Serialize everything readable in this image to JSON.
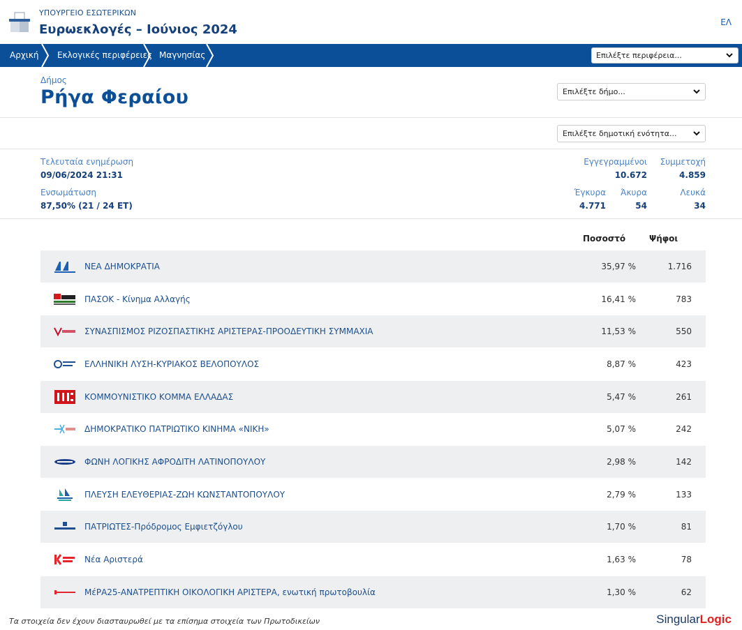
{
  "header": {
    "ministry": "ΥΠΟΥΡΓΕΙΟ ΕΣΩΤΕΡΙΚΩΝ",
    "title": "Ευρωεκλογές – Ιούνιος 2024",
    "lang": "ΕΛ"
  },
  "nav": {
    "crumbs": [
      "Αρχική",
      "Εκλογικές περιφέρειες",
      "Μαγνησίας"
    ],
    "region_select": "Επιλέξτε περιφέρεια..."
  },
  "municipality": {
    "label": "Δήμος",
    "name": "Ρήγα Φεραίου",
    "select": "Επιλέξτε δήμο...",
    "unit_select": "Επιλέξτε δημοτική ενότητα..."
  },
  "stats": {
    "last_update_label": "Τελευταία ενημέρωση",
    "last_update": "09/06/2024 21:31",
    "integration_label": "Ενσωμάτωση",
    "integration": "87,50% (21 / 24 ΕΤ)",
    "registered_label": "Εγγεγραμμένοι",
    "registered": "10.672",
    "turnout_label": "Συμμετοχή",
    "turnout": "4.859",
    "valid_label": "Έγκυρα",
    "valid": "4.771",
    "invalid_label": "Άκυρα",
    "invalid": "54",
    "blank_label": "Λευκά",
    "blank": "34"
  },
  "results": {
    "pct_header": "Ποσοστό",
    "votes_header": "Ψήφοι",
    "parties": [
      {
        "name": "ΝΕΑ ΔΗΜΟΚΡΑΤΙΑ",
        "pct": "35,97 %",
        "votes": "1.716"
      },
      {
        "name": "ΠΑΣΟΚ - Κίνημα Αλλαγής",
        "pct": "16,41 %",
        "votes": "783"
      },
      {
        "name": "ΣΥΝΑΣΠΙΣΜΟΣ ΡΙΖΟΣΠΑΣΤΙΚΗΣ ΑΡΙΣΤΕΡΑΣ-ΠΡΟΟΔΕΥΤΙΚΗ ΣΥΜΜΑΧΙΑ",
        "pct": "11,53 %",
        "votes": "550"
      },
      {
        "name": "ΕΛΛΗΝΙΚΗ ΛΥΣΗ-ΚΥΡΙΑΚΟΣ ΒΕΛΟΠΟΥΛΟΣ",
        "pct": "8,87 %",
        "votes": "423"
      },
      {
        "name": "ΚΟΜΜΟΥΝΙΣΤΙΚΟ ΚΟΜΜΑ ΕΛΛΑΔΑΣ",
        "pct": "5,47 %",
        "votes": "261"
      },
      {
        "name": "ΔΗΜΟΚΡΑΤΙΚΟ ΠΑΤΡΙΩΤΙΚΟ ΚΙΝΗΜΑ «ΝΙΚΗ»",
        "pct": "5,07 %",
        "votes": "242"
      },
      {
        "name": "ΦΩΝΗ ΛΟΓΙΚΗΣ ΑΦΡΟΔΙΤΗ ΛΑΤΙΝΟΠΟΥΛΟΥ",
        "pct": "2,98 %",
        "votes": "142"
      },
      {
        "name": "ΠΛΕΥΣΗ ΕΛΕΥΘΕΡΙΑΣ-ΖΩΗ ΚΩΝΣΤΑΝΤΟΠΟΥΛΟΥ",
        "pct": "2,79 %",
        "votes": "133"
      },
      {
        "name": "ΠΑΤΡΙΩΤΕΣ-Πρόδρομος Εμφιετζόγλου",
        "pct": "1,70 %",
        "votes": "81"
      },
      {
        "name": "Νέα Αριστερά",
        "pct": "1,63 %",
        "votes": "78"
      },
      {
        "name": "ΜέΡΑ25-ΑΝΑΤΡΕΠΤΙΚΗ ΟΙΚΟΛΟΓΙΚΗ ΑΡΙΣΤΕΡΑ, ενωτική πρωτοβουλία",
        "pct": "1,30 %",
        "votes": "62"
      }
    ]
  },
  "footer": {
    "note": "Τα στοιχεία δεν έχουν διασταυρωθεί με τα επίσημα στοιχεία των Πρωτοδικείων",
    "brand_a": "Singular",
    "brand_b": "Logic"
  }
}
